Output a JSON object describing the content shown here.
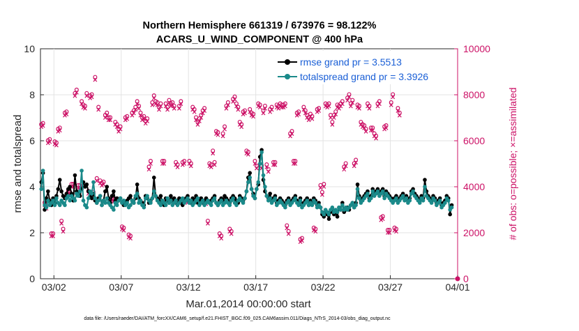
{
  "chart_data": {
    "type": "line",
    "title_line1": "Northern Hemisphere 661319 / 673976 = 98.122%",
    "title_line2": "ACARS_U_WIND_COMPONENT @ 400 hPa",
    "xlabel": "Mar.01,2014 00:00:00 start",
    "ylabel_left": "rmse and totalspread",
    "ylabel_right": "# of obs: o=possible; ×=assimilated",
    "footer": "data file: /Users/raeder/DAI/ATM_forcXX/CAM6_setup/f.e21.FHIST_BGC.f09_025.CAM6assim.011/Diags_NTrS_2014-03/obs_diag_output.nc",
    "x_range_days": [
      0.0,
      31.0
    ],
    "x_ticks": [
      {
        "day": 1,
        "label": "03/02"
      },
      {
        "day": 6,
        "label": "03/07"
      },
      {
        "day": 11,
        "label": "03/12"
      },
      {
        "day": 16,
        "label": "03/17"
      },
      {
        "day": 21,
        "label": "03/22"
      },
      {
        "day": 26,
        "label": "03/27"
      },
      {
        "day": 31,
        "label": "04/01"
      }
    ],
    "ylim_left": [
      0,
      10
    ],
    "yticks_left": [
      "0",
      "2",
      "4",
      "6",
      "8",
      "10"
    ],
    "ylim_right": [
      0,
      10000
    ],
    "yticks_right": [
      "0",
      "2000",
      "4000",
      "6000",
      "8000",
      "10000"
    ],
    "grid": true,
    "legend_position": "top-right",
    "time_step_days": 0.125,
    "series": [
      {
        "name": "rmse grand pr = 3.5513",
        "color": "#000000",
        "values": [
          4.2,
          4.6,
          3.0,
          3.5,
          3.8,
          3.4,
          3.2,
          3.5,
          3.3,
          3.6,
          3.9,
          4.3,
          3.8,
          3.6,
          3.5,
          3.7,
          3.9,
          4.0,
          3.7,
          3.4,
          4.5,
          3.8,
          3.7,
          3.6,
          3.9,
          4.2,
          4.0,
          4.1,
          3.8,
          3.6,
          3.5,
          3.7,
          3.4,
          3.3,
          3.5,
          3.6,
          3.2,
          3.4,
          3.8,
          4.0,
          3.5,
          3.3,
          3.6,
          3.8,
          3.4,
          3.5,
          3.4,
          3.5,
          3.3,
          3.2,
          3.3,
          3.4,
          3.5,
          3.6,
          3.4,
          3.3,
          3.5,
          4.1,
          3.5,
          3.4,
          3.3,
          3.2,
          3.6,
          3.5,
          3.3,
          3.4,
          3.5,
          4.4,
          3.6,
          3.5,
          3.4,
          3.6,
          3.3,
          3.2,
          3.5,
          3.4,
          3.3,
          3.6,
          3.4,
          3.5,
          3.3,
          3.4,
          3.5,
          3.3,
          3.2,
          3.4,
          3.5,
          3.6,
          3.4,
          3.3,
          3.5,
          3.4,
          3.6,
          3.3,
          3.4,
          3.5,
          3.3,
          3.4,
          3.5,
          3.4,
          3.3,
          3.4,
          3.5,
          3.6,
          3.3,
          3.2,
          3.4,
          3.5,
          3.4,
          3.6,
          3.5,
          3.4,
          3.3,
          3.5,
          3.6,
          3.5,
          3.4,
          3.3,
          3.6,
          3.5,
          3.4,
          3.5,
          3.8,
          4.4,
          4.6,
          3.9,
          3.7,
          3.5,
          3.9,
          4.1,
          5.3,
          5.6,
          4.3,
          3.8,
          3.6,
          3.5,
          3.7,
          3.4,
          3.5,
          3.6,
          3.3,
          3.4,
          3.5,
          3.4,
          3.3,
          3.2,
          3.4,
          3.5,
          3.3,
          3.4,
          3.5,
          3.6,
          3.4,
          3.3,
          3.5,
          3.2,
          3.3,
          3.4,
          3.5,
          3.2,
          3.4,
          3.3,
          3.5,
          3.4,
          3.2,
          3.3,
          3.1,
          2.8,
          2.7,
          2.9,
          2.8,
          2.6,
          2.9,
          3.0,
          2.8,
          2.9,
          2.7,
          3.1,
          3.0,
          3.3,
          2.9,
          3.0,
          3.1,
          3.0,
          3.2,
          3.3,
          3.1,
          3.3,
          4.1,
          3.6,
          3.4,
          3.5,
          3.6,
          3.7,
          3.8,
          3.5,
          3.6,
          3.9,
          3.7,
          3.8,
          3.9,
          3.7,
          3.8,
          3.9,
          3.6,
          3.8,
          3.7,
          3.6,
          3.5,
          3.4,
          3.5,
          3.6,
          3.4,
          3.5,
          3.6,
          3.7,
          3.5,
          3.6,
          3.4,
          3.5,
          3.8,
          3.9,
          3.7,
          3.6,
          3.5,
          3.4,
          3.6,
          3.5,
          4.3,
          3.8,
          3.6,
          3.5,
          3.4,
          3.6,
          3.5,
          3.3,
          3.4,
          3.5,
          3.2,
          3.3,
          3.4,
          3.6,
          3.5,
          2.8,
          3.2
        ]
      },
      {
        "name": "totalspread grand pr = 3.3926",
        "color": "#1a8a8a",
        "values": [
          3.9,
          4.7,
          3.2,
          3.1,
          3.4,
          3.2,
          3.3,
          3.4,
          3.2,
          3.5,
          3.3,
          3.2,
          3.4,
          3.3,
          3.2,
          3.5,
          3.6,
          3.4,
          3.6,
          3.5,
          3.4,
          3.7,
          3.6,
          3.8,
          4.7,
          3.4,
          3.2,
          3.1,
          3.5,
          3.8,
          3.7,
          4.2,
          3.5,
          3.3,
          3.4,
          3.6,
          3.2,
          3.4,
          3.3,
          3.5,
          3.3,
          3.2,
          3.1,
          3.0,
          3.3,
          3.2,
          3.4,
          3.5,
          3.3,
          3.4,
          3.2,
          3.3,
          3.1,
          3.2,
          3.4,
          3.3,
          3.6,
          3.7,
          3.3,
          3.4,
          3.2,
          3.1,
          3.5,
          3.6,
          3.4,
          3.3,
          3.5,
          3.8,
          3.6,
          3.4,
          3.3,
          3.2,
          3.4,
          3.3,
          3.2,
          3.5,
          3.3,
          3.4,
          3.2,
          3.3,
          3.4,
          3.2,
          3.3,
          3.4,
          3.5,
          3.3,
          3.4,
          3.5,
          3.3,
          3.4,
          3.2,
          3.3,
          3.4,
          3.5,
          3.2,
          3.3,
          3.4,
          3.2,
          3.3,
          3.4,
          3.3,
          3.2,
          3.4,
          3.5,
          3.3,
          3.2,
          3.3,
          3.4,
          3.2,
          3.3,
          3.4,
          3.3,
          3.2,
          3.4,
          3.5,
          3.3,
          3.2,
          3.4,
          3.5,
          3.4,
          3.3,
          3.5,
          3.8,
          4.2,
          4.4,
          3.9,
          3.6,
          3.5,
          3.9,
          4.2,
          5.0,
          5.5,
          4.5,
          4.0,
          3.6,
          3.4,
          3.5,
          3.3,
          3.4,
          3.5,
          3.2,
          3.3,
          3.4,
          3.3,
          3.2,
          3.1,
          3.3,
          3.4,
          3.2,
          3.3,
          3.4,
          3.5,
          3.3,
          3.2,
          3.4,
          3.1,
          3.2,
          3.3,
          3.4,
          3.2,
          3.3,
          3.2,
          3.4,
          3.3,
          3.1,
          3.2,
          3.1,
          2.9,
          2.8,
          3.0,
          2.9,
          2.8,
          3.0,
          3.1,
          2.9,
          3.0,
          2.9,
          3.1,
          3.0,
          3.2,
          3.0,
          3.1,
          3.0,
          3.1,
          3.2,
          3.3,
          3.1,
          3.2,
          3.9,
          3.5,
          3.3,
          3.4,
          3.5,
          3.6,
          3.7,
          3.4,
          3.5,
          3.8,
          3.6,
          3.7,
          3.8,
          3.6,
          3.7,
          3.8,
          3.5,
          3.7,
          3.6,
          3.5,
          3.4,
          3.3,
          3.4,
          3.5,
          3.3,
          3.4,
          3.5,
          3.6,
          3.4,
          3.5,
          3.3,
          3.4,
          3.7,
          3.8,
          3.6,
          3.5,
          3.4,
          3.3,
          3.5,
          3.4,
          4.0,
          3.6,
          3.5,
          3.4,
          3.3,
          3.5,
          3.4,
          3.2,
          3.3,
          3.4,
          3.1,
          3.2,
          3.3,
          3.5,
          3.4,
          3.0,
          3.1
        ]
      }
    ],
    "obs_counts": {
      "color": "#cc1166",
      "marker_possible": "o",
      "marker_assimilated": "x",
      "values": [
        6600,
        6650,
        3200,
        3050,
        5900,
        5950,
        1850,
        1850,
        5850,
        5800,
        6400,
        6450,
        2400,
        2050,
        7100,
        7150,
        3700,
        3650,
        4000,
        4000,
        7950,
        8100,
        3950,
        3950,
        7600,
        7450,
        7400,
        7950,
        3700,
        7850,
        7900,
        3650,
        8650,
        4250,
        7350,
        4150,
        4050,
        4100,
        7000,
        7100,
        6900,
        6900,
        3400,
        3350,
        6700,
        6600,
        6400,
        6500,
        2150,
        2100,
        6900,
        6950,
        1800,
        1750,
        7100,
        7200,
        7350,
        7600,
        7400,
        7100,
        6900,
        6950,
        6750,
        6850,
        4750,
        5000,
        7550,
        7850,
        7600,
        7550,
        7350,
        7500,
        5000,
        5000,
        7500,
        7350,
        7650,
        7500,
        7550,
        7400,
        4950,
        4850,
        7400,
        7600,
        4950,
        5000,
        3350,
        3300,
        5000,
        4900,
        7350,
        7250,
        6900,
        6700,
        6850,
        7000,
        7200,
        7300,
        3250,
        2400,
        4900,
        4850,
        5450,
        4950,
        6300,
        6250,
        1850,
        1750,
        6200,
        6500,
        7400,
        7550,
        2050,
        1950,
        7700,
        7800,
        7500,
        7350,
        6700,
        6600,
        7150,
        7200,
        5450,
        5400,
        7250,
        7100,
        7050,
        5000,
        4800,
        7500,
        7450,
        4800,
        7200,
        7400,
        4850,
        4650,
        7250,
        7350,
        4950,
        4950,
        7450,
        7400,
        7500,
        7450,
        7450,
        7500,
        2200,
        1950,
        6200,
        6300,
        5000,
        5000,
        7100,
        7150,
        1600,
        1650,
        7350,
        7200,
        7000,
        6900,
        7050,
        6950,
        2100,
        2050,
        7250,
        7300,
        3950,
        3650,
        4000,
        7500,
        7450,
        7500,
        7000,
        6700,
        7000,
        7150,
        7450,
        7400,
        7500,
        7600,
        4750,
        4900,
        7750,
        7900,
        7500,
        7650,
        4900,
        5050,
        7450,
        7400,
        6700,
        6600,
        6550,
        6400,
        7500,
        7400,
        6450,
        6450,
        6200,
        6100,
        7500,
        7600,
        2550,
        2600,
        6500,
        6550,
        2000,
        2000,
        7550,
        7900,
        2100,
        2050,
        7300,
        7100
      ]
    },
    "final_zero_point": 0
  }
}
